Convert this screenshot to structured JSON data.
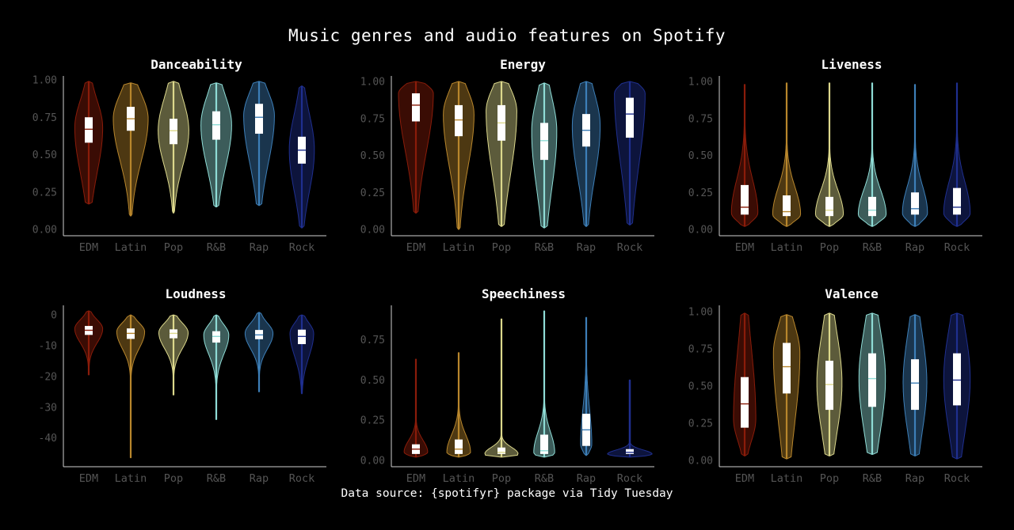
{
  "title": "Music genres and audio features on Spotify",
  "caption": "Data source: {spotifyr} package via Tidy Tuesday",
  "colors": {
    "EDM": "#8a1c0a",
    "Latin": "#b8862c",
    "Pop": "#dcd88c",
    "R&B": "#8fdcd6",
    "Rap": "#3d7fb8",
    "Rock": "#1f2f8f"
  },
  "chart_data": [
    {
      "type": "violin",
      "title": "Danceability",
      "categories": [
        "EDM",
        "Latin",
        "Pop",
        "R&B",
        "Rap",
        "Rock"
      ],
      "yticks": [
        0,
        0.25,
        0.5,
        0.75,
        1.0
      ],
      "ytick_labels": [
        "0.00",
        "0.25",
        "0.50",
        "0.75",
        "1.00"
      ],
      "ylim": [
        0,
        1.0
      ],
      "stats": [
        {
          "min": 0.17,
          "max": 0.99,
          "q1": 0.58,
          "median": 0.67,
          "q3": 0.75,
          "mode": 0.68,
          "wmax": 0.2,
          "tail_lo": 0.32,
          "tail_hi": 0.9
        },
        {
          "min": 0.09,
          "max": 0.98,
          "q1": 0.66,
          "median": 0.74,
          "q3": 0.82,
          "mode": 0.74,
          "wmax": 0.25,
          "tail_lo": 0.4,
          "tail_hi": 0.94
        },
        {
          "min": 0.11,
          "max": 0.99,
          "q1": 0.57,
          "median": 0.66,
          "q3": 0.74,
          "mode": 0.66,
          "wmax": 0.22,
          "tail_lo": 0.38,
          "tail_hi": 0.92
        },
        {
          "min": 0.15,
          "max": 0.98,
          "q1": 0.6,
          "median": 0.7,
          "q3": 0.79,
          "mode": 0.7,
          "wmax": 0.22,
          "tail_lo": 0.36,
          "tail_hi": 0.93
        },
        {
          "min": 0.16,
          "max": 0.99,
          "q1": 0.64,
          "median": 0.75,
          "q3": 0.84,
          "mode": 0.76,
          "wmax": 0.22,
          "tail_lo": 0.38,
          "tail_hi": 0.95
        },
        {
          "min": 0.01,
          "max": 0.96,
          "q1": 0.44,
          "median": 0.53,
          "q3": 0.62,
          "mode": 0.53,
          "wmax": 0.18,
          "tail_lo": 0.2,
          "tail_hi": 0.82
        }
      ]
    },
    {
      "type": "violin",
      "title": "Energy",
      "categories": [
        "EDM",
        "Latin",
        "Pop",
        "R&B",
        "Rap",
        "Rock"
      ],
      "yticks": [
        0,
        0.25,
        0.5,
        0.75,
        1.0
      ],
      "ytick_labels": [
        "0.00",
        "0.25",
        "0.50",
        "0.75",
        "1.00"
      ],
      "ylim": [
        0,
        1.0
      ],
      "stats": [
        {
          "min": 0.11,
          "max": 1.0,
          "q1": 0.73,
          "median": 0.84,
          "q3": 0.92,
          "mode": 0.92,
          "wmax": 0.25,
          "tail_lo": 0.45,
          "tail_hi": 0.99
        },
        {
          "min": 0.0,
          "max": 1.0,
          "q1": 0.63,
          "median": 0.74,
          "q3": 0.84,
          "mode": 0.78,
          "wmax": 0.22,
          "tail_lo": 0.35,
          "tail_hi": 0.97
        },
        {
          "min": 0.02,
          "max": 1.0,
          "q1": 0.6,
          "median": 0.72,
          "q3": 0.84,
          "mode": 0.8,
          "wmax": 0.22,
          "tail_lo": 0.3,
          "tail_hi": 0.98
        },
        {
          "min": 0.01,
          "max": 0.99,
          "q1": 0.47,
          "median": 0.6,
          "q3": 0.72,
          "mode": 0.66,
          "wmax": 0.18,
          "tail_lo": 0.2,
          "tail_hi": 0.94
        },
        {
          "min": 0.02,
          "max": 1.0,
          "q1": 0.56,
          "median": 0.67,
          "q3": 0.78,
          "mode": 0.7,
          "wmax": 0.2,
          "tail_lo": 0.28,
          "tail_hi": 0.96
        },
        {
          "min": 0.03,
          "max": 1.0,
          "q1": 0.62,
          "median": 0.78,
          "q3": 0.89,
          "mode": 0.92,
          "wmax": 0.22,
          "tail_lo": 0.35,
          "tail_hi": 0.99
        }
      ]
    },
    {
      "type": "violin",
      "title": "Liveness",
      "categories": [
        "EDM",
        "Latin",
        "Pop",
        "R&B",
        "Rap",
        "Rock"
      ],
      "yticks": [
        0,
        0.25,
        0.5,
        0.75,
        1.0
      ],
      "ytick_labels": [
        "0.00",
        "0.25",
        "0.50",
        "0.75",
        "1.00"
      ],
      "ylim": [
        0,
        1.0
      ],
      "stats": [
        {
          "min": 0.02,
          "max": 0.98,
          "q1": 0.1,
          "median": 0.15,
          "q3": 0.3,
          "mode": 0.11,
          "wmax": 0.19,
          "tail_lo": 0.05,
          "tail_hi": 0.38
        },
        {
          "min": 0.02,
          "max": 0.99,
          "q1": 0.09,
          "median": 0.12,
          "q3": 0.23,
          "mode": 0.1,
          "wmax": 0.2,
          "tail_lo": 0.05,
          "tail_hi": 0.32
        },
        {
          "min": 0.02,
          "max": 0.99,
          "q1": 0.09,
          "median": 0.13,
          "q3": 0.22,
          "mode": 0.1,
          "wmax": 0.2,
          "tail_lo": 0.05,
          "tail_hi": 0.3
        },
        {
          "min": 0.02,
          "max": 0.99,
          "q1": 0.09,
          "median": 0.13,
          "q3": 0.22,
          "mode": 0.1,
          "wmax": 0.2,
          "tail_lo": 0.05,
          "tail_hi": 0.3
        },
        {
          "min": 0.02,
          "max": 0.98,
          "q1": 0.1,
          "median": 0.14,
          "q3": 0.25,
          "mode": 0.11,
          "wmax": 0.18,
          "tail_lo": 0.05,
          "tail_hi": 0.33
        },
        {
          "min": 0.02,
          "max": 0.99,
          "q1": 0.1,
          "median": 0.15,
          "q3": 0.28,
          "mode": 0.11,
          "wmax": 0.19,
          "tail_lo": 0.05,
          "tail_hi": 0.36
        }
      ]
    },
    {
      "type": "violin",
      "title": "Loudness",
      "categories": [
        "EDM",
        "Latin",
        "Pop",
        "R&B",
        "Rap",
        "Rock"
      ],
      "yticks": [
        0,
        -10,
        -20,
        -30,
        -40
      ],
      "ytick_labels": [
        "0",
        "-10",
        "-20",
        "-30",
        "-40"
      ],
      "ylim": [
        -46.4,
        1.3
      ],
      "stats": [
        {
          "min": -19.5,
          "max": 1.3,
          "q1": -6.5,
          "median": -5.0,
          "q3": -3.6,
          "mode": -4.5,
          "wmax": 0.2,
          "tail_lo": -10,
          "tail_hi": -1
        },
        {
          "min": -46.4,
          "max": 0.0,
          "q1": -7.8,
          "median": -6.0,
          "q3": -4.4,
          "mode": -5.5,
          "wmax": 0.2,
          "tail_lo": -12,
          "tail_hi": -2
        },
        {
          "min": -26.0,
          "max": 0.0,
          "q1": -7.6,
          "median": -6.0,
          "q3": -4.7,
          "mode": -5.8,
          "wmax": 0.21,
          "tail_lo": -12,
          "tail_hi": -2
        },
        {
          "min": -34.0,
          "max": 0.0,
          "q1": -9.0,
          "median": -7.0,
          "q3": -5.3,
          "mode": -6.5,
          "wmax": 0.18,
          "tail_lo": -14,
          "tail_hi": -2.5
        },
        {
          "min": -25.0,
          "max": 0.8,
          "q1": -7.9,
          "median": -6.5,
          "q3": -4.9,
          "mode": -6.0,
          "wmax": 0.2,
          "tail_lo": -12,
          "tail_hi": -2
        },
        {
          "min": -25.6,
          "max": 0.0,
          "q1": -9.5,
          "median": -7.0,
          "q3": -4.8,
          "mode": -6.0,
          "wmax": 0.17,
          "tail_lo": -15,
          "tail_hi": -2
        }
      ]
    },
    {
      "type": "violin",
      "title": "Speechiness",
      "categories": [
        "EDM",
        "Latin",
        "Pop",
        "R&B",
        "Rap",
        "Rock"
      ],
      "yticks": [
        0,
        0.25,
        0.5,
        0.75
      ],
      "ytick_labels": [
        "0.00",
        "0.25",
        "0.50",
        "0.75"
      ],
      "ylim": [
        0,
        0.93
      ],
      "stats": [
        {
          "min": 0.02,
          "max": 0.63,
          "q1": 0.04,
          "median": 0.07,
          "q3": 0.1,
          "mode": 0.05,
          "wmax": 0.17,
          "tail_lo": 0.03,
          "tail_hi": 0.14
        },
        {
          "min": 0.02,
          "max": 0.67,
          "q1": 0.04,
          "median": 0.07,
          "q3": 0.13,
          "mode": 0.05,
          "wmax": 0.17,
          "tail_lo": 0.03,
          "tail_hi": 0.18
        },
        {
          "min": 0.02,
          "max": 0.88,
          "q1": 0.04,
          "median": 0.05,
          "q3": 0.08,
          "mode": 0.04,
          "wmax": 0.24,
          "tail_lo": 0.03,
          "tail_hi": 0.09
        },
        {
          "min": 0.02,
          "max": 0.93,
          "q1": 0.04,
          "median": 0.06,
          "q3": 0.16,
          "mode": 0.05,
          "wmax": 0.15,
          "tail_lo": 0.03,
          "tail_hi": 0.2
        },
        {
          "min": 0.03,
          "max": 0.89,
          "q1": 0.09,
          "median": 0.19,
          "q3": 0.29,
          "mode": 0.1,
          "wmax": 0.08,
          "tail_lo": 0.05,
          "tail_hi": 0.36
        },
        {
          "min": 0.02,
          "max": 0.5,
          "q1": 0.04,
          "median": 0.05,
          "q3": 0.07,
          "mode": 0.04,
          "wmax": 0.32,
          "tail_lo": 0.03,
          "tail_hi": 0.07
        }
      ]
    },
    {
      "type": "violin",
      "title": "Valence",
      "categories": [
        "EDM",
        "Latin",
        "Pop",
        "R&B",
        "Rap",
        "Rock"
      ],
      "yticks": [
        0,
        0.25,
        0.5,
        0.75,
        1.0
      ],
      "ytick_labels": [
        "0.00",
        "0.25",
        "0.50",
        "0.75",
        "1.00"
      ],
      "ylim": [
        0,
        1.0
      ],
      "stats": [
        {
          "min": 0.03,
          "max": 0.99,
          "q1": 0.22,
          "median": 0.38,
          "q3": 0.56,
          "mode": 0.28,
          "wmax": 0.16,
          "tail_lo": 0.1,
          "tail_hi": 0.85
        },
        {
          "min": 0.01,
          "max": 0.98,
          "q1": 0.45,
          "median": 0.63,
          "q3": 0.79,
          "mode": 0.72,
          "wmax": 0.19,
          "tail_lo": 0.15,
          "tail_hi": 0.95
        },
        {
          "min": 0.03,
          "max": 0.99,
          "q1": 0.34,
          "median": 0.51,
          "q3": 0.67,
          "mode": 0.52,
          "wmax": 0.18,
          "tail_lo": 0.12,
          "tail_hi": 0.92
        },
        {
          "min": 0.04,
          "max": 0.99,
          "q1": 0.36,
          "median": 0.55,
          "q3": 0.72,
          "mode": 0.55,
          "wmax": 0.19,
          "tail_lo": 0.12,
          "tail_hi": 0.95
        },
        {
          "min": 0.03,
          "max": 0.98,
          "q1": 0.34,
          "median": 0.52,
          "q3": 0.68,
          "mode": 0.52,
          "wmax": 0.17,
          "tail_lo": 0.12,
          "tail_hi": 0.92
        },
        {
          "min": 0.01,
          "max": 0.99,
          "q1": 0.37,
          "median": 0.54,
          "q3": 0.72,
          "mode": 0.55,
          "wmax": 0.19,
          "tail_lo": 0.12,
          "tail_hi": 0.95
        }
      ]
    }
  ]
}
